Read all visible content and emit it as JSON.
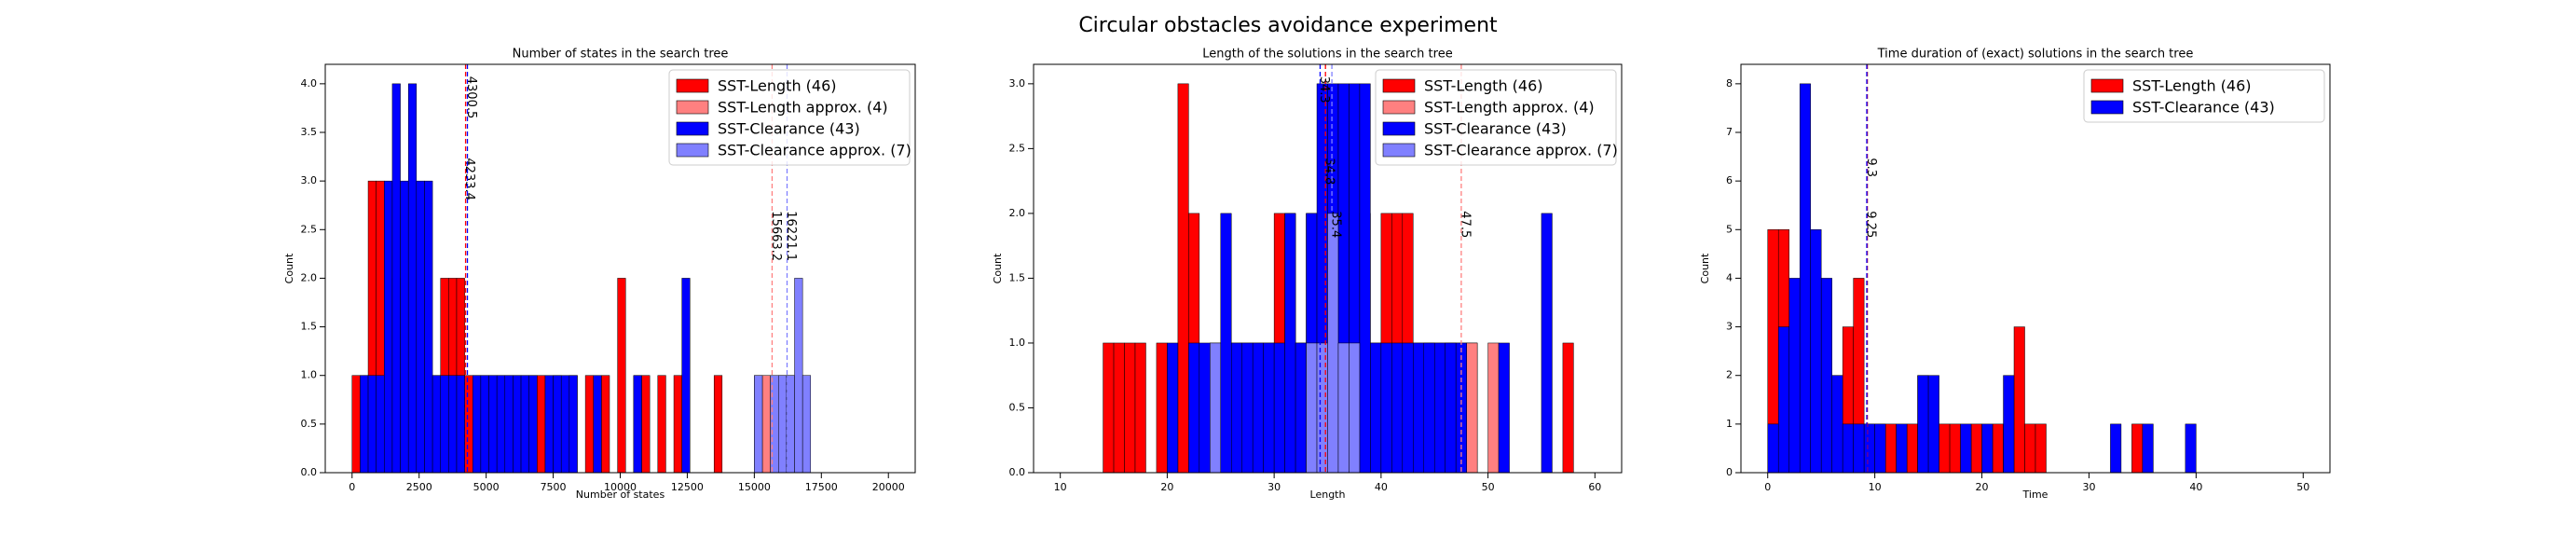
{
  "title": "Circular obstacles avoidance experiment",
  "chart_data": [
    {
      "type": "histogram",
      "title": "Number of states in the search tree",
      "x_label": "Number of states",
      "y_label": "Count",
      "xlim": [
        -1000,
        21000
      ],
      "ylim": [
        0,
        4.2
      ],
      "xticks": [
        0,
        2500,
        5000,
        7500,
        10000,
        12500,
        15000,
        17500,
        20000
      ],
      "yticks": [
        {
          "value": 0,
          "label": "0.0"
        },
        {
          "value": 0.5,
          "label": "0.5"
        },
        {
          "value": 1,
          "label": "1.0"
        },
        {
          "value": 1.5,
          "label": "1.5"
        },
        {
          "value": 2,
          "label": "2.0"
        },
        {
          "value": 2.5,
          "label": "2.5"
        },
        {
          "value": 3,
          "label": "3.0"
        },
        {
          "value": 3.5,
          "label": "3.5"
        },
        {
          "value": 4,
          "label": "4.0"
        }
      ],
      "legend": "upper right",
      "bins": [
        0,
        300,
        600,
        900,
        1200,
        1500,
        1800,
        2100,
        2400,
        2700,
        3000,
        3300,
        3600,
        3900,
        4200,
        4500,
        4800,
        5100,
        5400,
        5700,
        6000,
        6300,
        6600,
        6900,
        7200,
        7500,
        7800,
        8100,
        8400,
        8700,
        9000,
        9300,
        9600,
        9900,
        10200,
        10500,
        10800,
        11100,
        11400,
        11700,
        12000,
        12300,
        12600,
        12900,
        13200,
        13500,
        13800,
        14100,
        14400,
        14700,
        15000,
        15300,
        15600,
        15900,
        16200,
        16500,
        16800,
        17100
      ],
      "series": [
        {
          "name": "SST-Length (46)",
          "color": "#ff0000",
          "mean": 4233.4,
          "values": [
            1,
            1,
            3,
            3,
            1,
            2,
            2,
            2,
            2,
            1,
            1,
            2,
            2,
            2,
            1,
            1,
            1,
            1,
            1,
            1,
            1,
            1,
            1,
            1,
            0,
            1,
            0,
            1,
            0,
            1,
            0,
            1,
            0,
            2,
            0,
            1,
            1,
            0,
            1,
            0,
            1,
            0,
            0,
            0,
            0,
            1,
            0,
            0,
            0,
            0,
            0,
            0,
            0,
            0,
            0,
            0,
            0
          ]
        },
        {
          "name": "SST-Length approx. (4)",
          "color": "#ff8080",
          "mean": 15663.2,
          "values": [
            0,
            0,
            0,
            0,
            0,
            0,
            0,
            0,
            0,
            0,
            0,
            0,
            0,
            0,
            0,
            0,
            0,
            0,
            0,
            0,
            0,
            0,
            0,
            0,
            0,
            0,
            0,
            0,
            0,
            0,
            0,
            0,
            0,
            0,
            0,
            0,
            0,
            0,
            0,
            0,
            0,
            0,
            0,
            0,
            0,
            0,
            0,
            0,
            0,
            0,
            1,
            1,
            0,
            1,
            1,
            0,
            0
          ]
        },
        {
          "name": "SST-Clearance (43)",
          "color": "#0000ff",
          "mean": 4300.5,
          "values": [
            0,
            1,
            1,
            1,
            3,
            4,
            3,
            4,
            3,
            3,
            1,
            1,
            1,
            1,
            0,
            1,
            1,
            1,
            1,
            1,
            1,
            1,
            1,
            0,
            1,
            1,
            1,
            1,
            0,
            0,
            1,
            0,
            0,
            0,
            0,
            1,
            0,
            0,
            0,
            0,
            0,
            2,
            0,
            0,
            0,
            0,
            0,
            0,
            0,
            0,
            0,
            0,
            0,
            0,
            0,
            0,
            0
          ]
        },
        {
          "name": "SST-Clearance approx. (7)",
          "color": "#8080ff",
          "mean": 16221.1,
          "values": [
            0,
            0,
            0,
            0,
            0,
            0,
            0,
            0,
            0,
            0,
            0,
            0,
            0,
            0,
            0,
            0,
            0,
            0,
            0,
            0,
            0,
            0,
            0,
            0,
            0,
            0,
            0,
            0,
            0,
            0,
            0,
            0,
            0,
            0,
            0,
            0,
            0,
            0,
            0,
            0,
            0,
            0,
            0,
            0,
            0,
            0,
            0,
            0,
            0,
            0,
            1,
            0,
            1,
            1,
            1,
            2,
            1
          ]
        }
      ]
    },
    {
      "type": "histogram",
      "title": "Length of the solutions in the search tree",
      "x_label": "Length",
      "y_label": "Count",
      "xlim": [
        7.5,
        62.5
      ],
      "ylim": [
        0,
        3.15
      ],
      "xticks": [
        10,
        20,
        30,
        40,
        50,
        60
      ],
      "yticks": [
        {
          "value": 0,
          "label": "0.0"
        },
        {
          "value": 0.5,
          "label": "0.5"
        },
        {
          "value": 1,
          "label": "1.0"
        },
        {
          "value": 1.5,
          "label": "1.5"
        },
        {
          "value": 2,
          "label": "2.0"
        },
        {
          "value": 2.5,
          "label": "2.5"
        },
        {
          "value": 3,
          "label": "3.0"
        }
      ],
      "legend": "upper right",
      "bins": [
        14,
        15,
        16,
        17,
        18,
        19,
        20,
        21,
        22,
        23,
        24,
        25,
        26,
        27,
        28,
        29,
        30,
        31,
        32,
        33,
        34,
        35,
        36,
        37,
        38,
        39,
        40,
        41,
        42,
        43,
        44,
        45,
        46,
        47,
        48,
        49,
        50,
        51,
        52,
        53,
        54,
        55,
        56,
        57,
        58
      ],
      "series": [
        {
          "name": "SST-Length (46)",
          "color": "#ff0000",
          "mean": 34.8,
          "values": [
            1,
            1,
            1,
            1,
            0,
            1,
            0,
            3,
            2,
            0,
            0,
            1,
            1,
            1,
            1,
            1,
            2,
            2,
            1,
            2,
            2,
            2,
            2,
            2,
            2,
            1,
            2,
            2,
            2,
            1,
            1,
            1,
            1,
            1,
            1,
            0,
            0,
            0,
            0,
            0,
            0,
            0,
            0,
            1
          ]
        },
        {
          "name": "SST-Length approx. (4)",
          "color": "#ff8080",
          "mean": 47.5,
          "values": [
            0,
            0,
            0,
            0,
            0,
            0,
            0,
            0,
            0,
            0,
            0,
            0,
            0,
            0,
            0,
            0,
            0,
            0,
            0,
            0,
            0,
            0,
            0,
            0,
            0,
            0,
            0,
            0,
            0,
            0,
            1,
            0,
            1,
            0,
            1,
            0,
            1,
            0,
            0,
            0,
            0,
            0,
            0,
            0
          ]
        },
        {
          "name": "SST-Clearance (43)",
          "color": "#0000ff",
          "mean": 34.3,
          "values": [
            0,
            0,
            0,
            0,
            0,
            0,
            1,
            0,
            1,
            1,
            1,
            2,
            1,
            1,
            1,
            1,
            1,
            2,
            1,
            2,
            3,
            3,
            3,
            3,
            3,
            1,
            1,
            1,
            1,
            1,
            1,
            1,
            1,
            1,
            0,
            0,
            0,
            1,
            0,
            0,
            0,
            2,
            0,
            0
          ]
        },
        {
          "name": "SST-Clearance approx. (7)",
          "color": "#8080ff",
          "mean": 35.4,
          "values": [
            0,
            0,
            0,
            0,
            0,
            0,
            0,
            0,
            0,
            0,
            1,
            0,
            0,
            0,
            0,
            0,
            0,
            0,
            0,
            1,
            1,
            2,
            1,
            1,
            0,
            0,
            0,
            0,
            0,
            0,
            0,
            0,
            0,
            0,
            0,
            0,
            0,
            0,
            0,
            0,
            0,
            0,
            0,
            0
          ]
        }
      ]
    },
    {
      "type": "histogram",
      "title": "Time duration of (exact) solutions in the search tree",
      "x_label": "Time",
      "y_label": "Count",
      "xlim": [
        -2.5,
        52.5
      ],
      "ylim": [
        0,
        8.4
      ],
      "xticks": [
        0,
        10,
        20,
        30,
        40,
        50
      ],
      "yticks": [
        0,
        1,
        2,
        3,
        4,
        5,
        6,
        7,
        8
      ],
      "legend": "upper right",
      "bins": [
        0,
        1,
        2,
        3,
        4,
        5,
        6,
        7,
        8,
        9,
        10,
        11,
        12,
        13,
        14,
        15,
        16,
        17,
        18,
        19,
        20,
        21,
        22,
        23,
        24,
        25,
        26,
        27,
        28,
        29,
        30,
        31,
        32,
        33,
        34,
        35,
        36,
        37,
        38,
        39,
        40
      ],
      "series": [
        {
          "name": "SST-Length (46)",
          "color": "#ff0000",
          "mean": 9.3,
          "values": [
            5,
            5,
            3,
            3,
            2,
            2,
            2,
            3,
            4,
            1,
            1,
            1,
            0,
            1,
            2,
            0,
            1,
            1,
            0,
            1,
            0,
            1,
            1,
            3,
            1,
            1,
            0,
            0,
            0,
            0,
            0,
            0,
            0,
            0,
            1,
            0,
            0,
            0,
            0,
            0
          ]
        },
        {
          "name": "SST-Clearance (43)",
          "color": "#0000ff",
          "mean": 9.25,
          "values": [
            1,
            3,
            4,
            8,
            5,
            4,
            2,
            1,
            1,
            1,
            1,
            0,
            1,
            0,
            2,
            2,
            0,
            0,
            1,
            0,
            1,
            0,
            2,
            0,
            0,
            0,
            0,
            0,
            0,
            0,
            0,
            0,
            1,
            0,
            0,
            1,
            0,
            0,
            0,
            1
          ]
        }
      ]
    }
  ]
}
